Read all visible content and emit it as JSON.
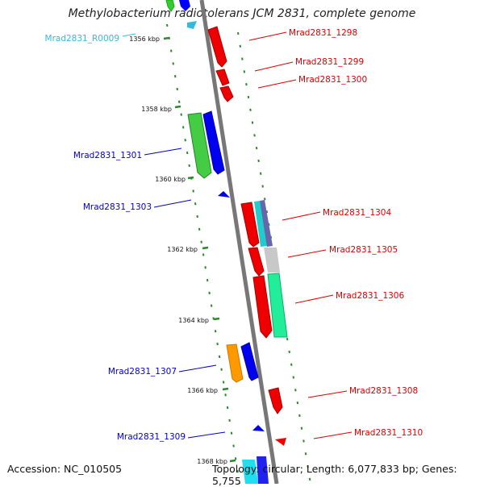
{
  "title": "Methylobacterium radiotolerans JCM 2831, complete genome",
  "footer": {
    "accession": "Accession: NC_010505",
    "topology": "Topology: circular; Length: 6,077,833 bp; Genes: 5,755"
  },
  "kbp_labels": [
    "1356 kbp",
    "1358 kbp",
    "1360 kbp",
    "1362 kbp",
    "1364 kbp",
    "1366 kbp",
    "1368 kbp"
  ],
  "genes": [
    {
      "name": "Mrad2831_R0009",
      "side": "left",
      "color": "#33bbdd"
    },
    {
      "name": "Mrad2831_1298",
      "side": "right",
      "color": "#dd0000"
    },
    {
      "name": "Mrad2831_1299",
      "side": "right",
      "color": "#dd0000"
    },
    {
      "name": "Mrad2831_1300",
      "side": "right",
      "color": "#dd0000"
    },
    {
      "name": "Mrad2831_1301",
      "side": "left",
      "color": "#0000cc"
    },
    {
      "name": "Mrad2831_1303",
      "side": "left",
      "color": "#0000cc"
    },
    {
      "name": "Mrad2831_1304",
      "side": "right",
      "color": "#dd0000"
    },
    {
      "name": "Mrad2831_1305",
      "side": "right",
      "color": "#dd0000"
    },
    {
      "name": "Mrad2831_1306",
      "side": "right",
      "color": "#dd0000"
    },
    {
      "name": "Mrad2831_1307",
      "side": "left",
      "color": "#0000cc"
    },
    {
      "name": "Mrad2831_1308",
      "side": "right",
      "color": "#dd0000"
    },
    {
      "name": "Mrad2831_1309",
      "side": "left",
      "color": "#0000cc"
    },
    {
      "name": "Mrad2831_1310",
      "side": "right",
      "color": "#dd0000"
    }
  ]
}
